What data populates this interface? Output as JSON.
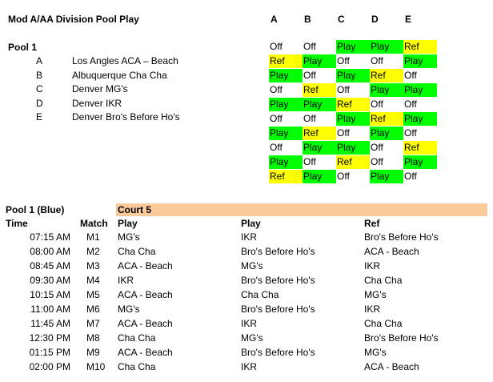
{
  "title": "Mod A/AA Division Pool Play",
  "matrix_headers": [
    "A",
    "B",
    "C",
    "D",
    "E"
  ],
  "pool": {
    "name": "Pool 1",
    "teams": [
      {
        "letter": "A",
        "name": "Los Angles ACA – Beach"
      },
      {
        "letter": "B",
        "name": "Albuquerque Cha Cha"
      },
      {
        "letter": "C",
        "name": "Denver MG's"
      },
      {
        "letter": "D",
        "name": "Denver IKR"
      },
      {
        "letter": "E",
        "name": "Denver Bro's Before Ho's"
      }
    ]
  },
  "matrix": [
    [
      "Off",
      "Off",
      "Play",
      "Play",
      "Ref"
    ],
    [
      "Ref",
      "Play",
      "Off",
      "Off",
      "Play"
    ],
    [
      "Play",
      "Off",
      "Play",
      "Ref",
      "Off"
    ],
    [
      "Off",
      "Ref",
      "Off",
      "Play",
      "Play"
    ],
    [
      "Play",
      "Play",
      "Ref",
      "Off",
      "Off"
    ],
    [
      "Off",
      "Off",
      "Play",
      "Ref",
      "Play"
    ],
    [
      "Play",
      "Ref",
      "Off",
      "Play",
      "Off"
    ],
    [
      "Off",
      "Play",
      "Play",
      "Off",
      "Ref"
    ],
    [
      "Play",
      "Off",
      "Ref",
      "Off",
      "Play"
    ],
    [
      "Ref",
      "Play",
      "Off",
      "Play",
      "Off"
    ]
  ],
  "status_colors": {
    "Play": "#00ff00",
    "Ref": "#ffff00",
    "Off": "#ffffff"
  },
  "schedule": {
    "pool_label": "Pool 1 (Blue)",
    "court_label": "Court 5",
    "court_color": "#fbc99a",
    "headers": {
      "time": "Time",
      "match": "Match",
      "play1": "Play",
      "play2": "Play",
      "ref": "Ref"
    },
    "rows": [
      {
        "time": "07:15 AM",
        "match": "M1",
        "play1": "MG's",
        "play2": "IKR",
        "ref": "Bro's Before Ho's"
      },
      {
        "time": "08:00 AM",
        "match": "M2",
        "play1": "Cha Cha",
        "play2": "Bro's Before Ho's",
        "ref": "ACA - Beach"
      },
      {
        "time": "08:45 AM",
        "match": "M3",
        "play1": "ACA - Beach",
        "play2": "MG's",
        "ref": "IKR"
      },
      {
        "time": "09:30 AM",
        "match": "M4",
        "play1": "IKR",
        "play2": "Bro's Before Ho's",
        "ref": "Cha Cha"
      },
      {
        "time": "10:15 AM",
        "match": "M5",
        "play1": "ACA - Beach",
        "play2": "Cha Cha",
        "ref": "MG's"
      },
      {
        "time": "11:00 AM",
        "match": "M6",
        "play1": "MG's",
        "play2": "Bro's Before Ho's",
        "ref": "IKR"
      },
      {
        "time": "11:45 AM",
        "match": "M7",
        "play1": "ACA - Beach",
        "play2": "IKR",
        "ref": "Cha Cha"
      },
      {
        "time": "12:30 PM",
        "match": "M8",
        "play1": "Cha Cha",
        "play2": "MG's",
        "ref": "Bro's Before Ho's"
      },
      {
        "time": "01:15 PM",
        "match": "M9",
        "play1": "ACA - Beach",
        "play2": "Bro's Before Ho's",
        "ref": "MG's"
      },
      {
        "time": "02:00 PM",
        "match": "M10",
        "play1": "Cha Cha",
        "play2": "IKR",
        "ref": "ACA - Beach"
      }
    ]
  }
}
